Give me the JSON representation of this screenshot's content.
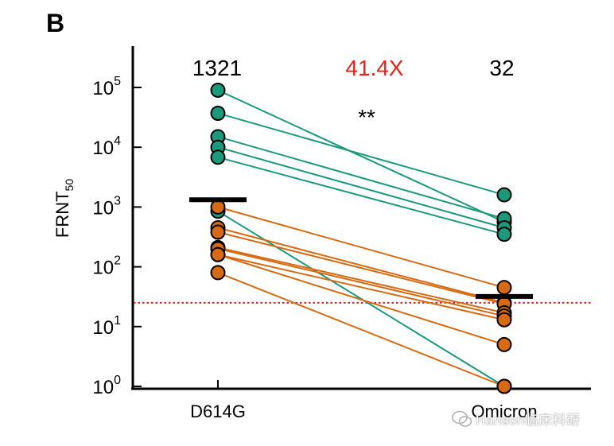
{
  "panel_label": "B",
  "watermark": "Hanson临床科研",
  "colors": {
    "green": "#1a9a7a",
    "orange": "#d76a12",
    "fold_text": "#e8211c",
    "threshold": "#e01e28",
    "axis": "#000000"
  },
  "chart_data": {
    "type": "scatter",
    "subtype": "paired-dot log-scale",
    "ylabel": "FRNT",
    "ylabel_subscript": "50",
    "yscale": "log",
    "ylim": [
      1,
      200000
    ],
    "ytick_bases": [
      "10",
      "10",
      "10",
      "10",
      "10",
      "10"
    ],
    "ytick_exponents": [
      "0",
      "1",
      "2",
      "3",
      "4",
      "5"
    ],
    "ytick_values": [
      1,
      10,
      100,
      1000,
      10000,
      100000
    ],
    "categories": [
      "D614G",
      "Omicron"
    ],
    "gmt_labels": [
      "1321",
      "32"
    ],
    "fold_change_label": "41.4X",
    "significance": "**",
    "gmt_values": [
      1321,
      32
    ],
    "threshold": 25,
    "pairs": [
      {
        "group": "green",
        "values": [
          90000,
          560
        ]
      },
      {
        "group": "green",
        "values": [
          37000,
          1600
        ]
      },
      {
        "group": "green",
        "values": [
          15000,
          640
        ]
      },
      {
        "group": "green",
        "values": [
          10000,
          450
        ]
      },
      {
        "group": "green",
        "values": [
          6800,
          350
        ]
      },
      {
        "group": "green",
        "values": [
          850,
          1
        ]
      },
      {
        "group": "orange",
        "values": [
          1000,
          45
        ]
      },
      {
        "group": "orange",
        "values": [
          450,
          25
        ]
      },
      {
        "group": "orange",
        "values": [
          380,
          24
        ]
      },
      {
        "group": "orange",
        "values": [
          210,
          17
        ]
      },
      {
        "group": "orange",
        "values": [
          200,
          15
        ]
      },
      {
        "group": "orange",
        "values": [
          160,
          13
        ]
      },
      {
        "group": "orange",
        "values": [
          160,
          5
        ]
      },
      {
        "group": "orange",
        "values": [
          80,
          1
        ]
      }
    ]
  }
}
